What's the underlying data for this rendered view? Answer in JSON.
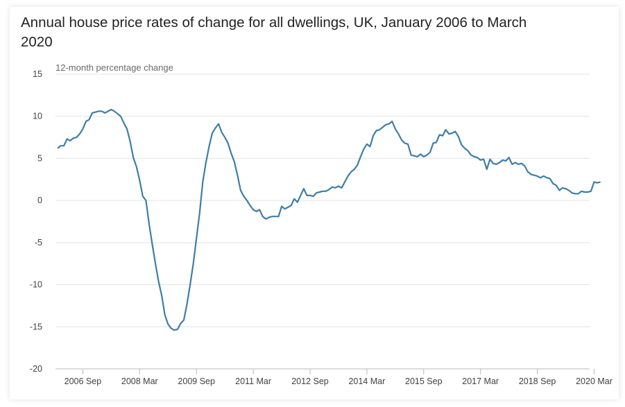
{
  "chart_data": {
    "type": "line",
    "title": "Annual house price rates of change for all dwellings, UK, January 2006 to March 2020",
    "ylabel": "12-month percentage change",
    "xlabel": "",
    "ylim": [
      -20,
      15
    ],
    "yticks": [
      "15",
      "10",
      "5",
      "0",
      "-5",
      "-10",
      "-15",
      "-20"
    ],
    "ytick_values": [
      15,
      10,
      5,
      0,
      -5,
      -10,
      -15,
      -20
    ],
    "xticks": [
      "2006 Sep",
      "2008 Mar",
      "2009 Sep",
      "2011 Mar",
      "2012 Sep",
      "2014 Mar",
      "2015 Sep",
      "2017 Mar",
      "2018 Sep",
      "2020 Mar"
    ],
    "xtick_months": [
      8,
      26,
      44,
      62,
      80,
      98,
      116,
      134,
      152,
      170
    ],
    "grid": true,
    "legend": "none",
    "series_color": "#3d7ea6",
    "series": [
      {
        "values": [
          6.2,
          6.5,
          6.5,
          7.3,
          7.1,
          7.4,
          7.5,
          7.9,
          8.5,
          9.4,
          9.6,
          10.4,
          10.5,
          10.6,
          10.6,
          10.4,
          10.6,
          10.8,
          10.6,
          10.3,
          10.0,
          9.2,
          8.5,
          7.0,
          5.1,
          4.0,
          2.4,
          0.5,
          0.0,
          -2.8,
          -5.2,
          -7.5,
          -9.6,
          -11.3,
          -13.6,
          -14.7,
          -15.2,
          -15.4,
          -15.3,
          -14.6,
          -14.2,
          -12.3,
          -10.0,
          -7.5,
          -4.5,
          -1.5,
          2.2,
          4.5,
          6.4,
          8.0,
          8.6,
          9.1,
          8.1,
          7.5,
          6.8,
          5.6,
          4.6,
          3.0,
          1.2,
          0.5,
          0.0,
          -0.6,
          -1.1,
          -1.3,
          -1.1,
          -1.9,
          -2.2,
          -2.0,
          -1.9,
          -1.9,
          -1.9,
          -0.7,
          -1.0,
          -0.8,
          -0.6,
          0.2,
          -0.2,
          0.6,
          1.4,
          0.6,
          0.6,
          0.5,
          0.9,
          1.0,
          1.1,
          1.1,
          1.3,
          1.6,
          1.5,
          1.7,
          1.5,
          2.2,
          2.9,
          3.4,
          3.7,
          4.2,
          5.2,
          6.1,
          6.7,
          6.4,
          7.7,
          8.3,
          8.4,
          8.7,
          9.0,
          9.1,
          9.4,
          8.5,
          7.9,
          7.2,
          6.8,
          6.7,
          5.4,
          5.3,
          5.2,
          5.5,
          5.2,
          5.4,
          5.7,
          6.8,
          6.9,
          7.8,
          7.7,
          8.4,
          7.9,
          8.0,
          8.2,
          7.6,
          6.6,
          6.2,
          5.9,
          5.4,
          5.2,
          5.1,
          4.8,
          4.9,
          3.7,
          4.9,
          4.4,
          4.3,
          4.5,
          4.8,
          4.7,
          5.1,
          4.3,
          4.5,
          4.3,
          4.4,
          4.1,
          3.4,
          3.1,
          3.0,
          2.9,
          2.7,
          2.9,
          2.7,
          2.6,
          2.0,
          1.8,
          1.2,
          1.5,
          1.4,
          1.2,
          0.9,
          0.8,
          0.8,
          1.1,
          1.0,
          1.0,
          1.1,
          2.2,
          2.1,
          2.2
        ]
      }
    ]
  }
}
